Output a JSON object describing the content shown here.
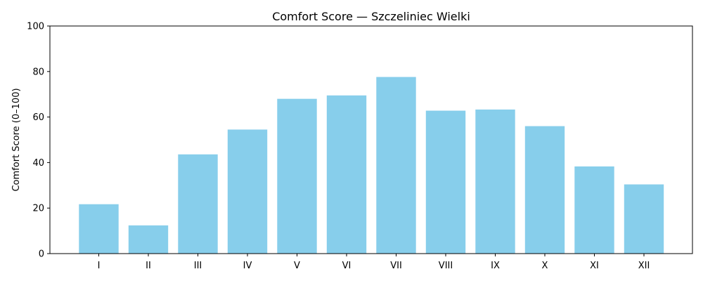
{
  "chart_data": {
    "type": "bar",
    "title": "Comfort Score — Szczeliniec Wielki",
    "xlabel": "",
    "ylabel": "Comfort Score (0–100)",
    "categories": [
      "I",
      "II",
      "III",
      "IV",
      "V",
      "VI",
      "VII",
      "VIII",
      "IX",
      "X",
      "XI",
      "XII"
    ],
    "values": [
      21.7,
      12.4,
      43.6,
      54.5,
      68.0,
      69.5,
      77.6,
      62.8,
      63.3,
      56.0,
      38.3,
      30.4
    ],
    "ylim": [
      0,
      100
    ],
    "yticks": [
      "0",
      "20",
      "40",
      "60",
      "80",
      "100"
    ],
    "bar_color": "#87CEEB",
    "grid": false,
    "legend": "none"
  }
}
